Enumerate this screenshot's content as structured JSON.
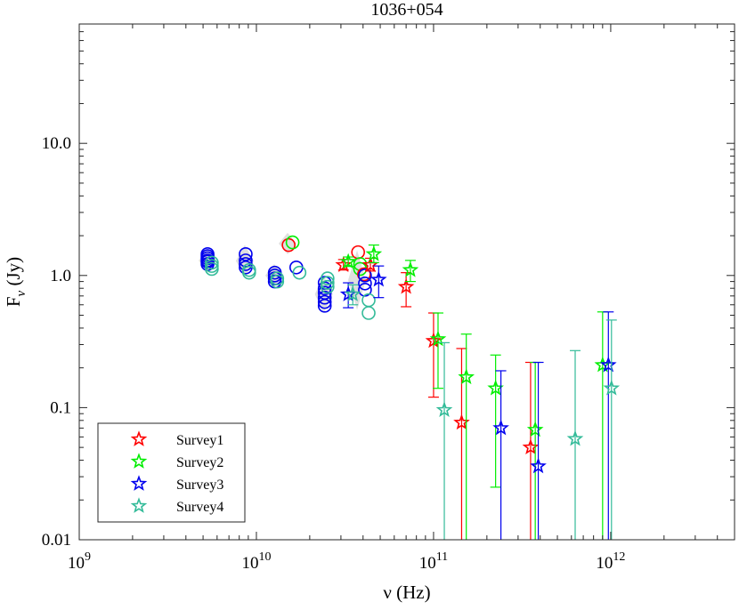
{
  "chart_data": {
    "type": "scatter",
    "title": "1036+054",
    "xlabel": "ν (Hz)",
    "ylabel": "F_ν (Jy)",
    "ylabel_main": "F",
    "ylabel_sub": "ν",
    "ylabel_unit": " (Jy)",
    "xscale": "log",
    "yscale": "log",
    "xlim": [
      1000000000,
      5000000000000
    ],
    "ylim": [
      0.01,
      80
    ],
    "x_ticks": [
      {
        "value": 1000000000,
        "mantissa": "10",
        "exp": "9"
      },
      {
        "value": 10000000000,
        "mantissa": "10",
        "exp": "10"
      },
      {
        "value": 100000000000,
        "mantissa": "10",
        "exp": "11"
      },
      {
        "value": 1000000000000,
        "mantissa": "10",
        "exp": "12"
      }
    ],
    "y_ticks": [
      {
        "value": 0.01,
        "label": "0.01"
      },
      {
        "value": 0.1,
        "label": "0.1"
      },
      {
        "value": 1,
        "label": "1.0"
      },
      {
        "value": 10,
        "label": "10.0"
      }
    ],
    "legend_position": "bottom-left",
    "colors": {
      "Survey1": "#ff0000",
      "Survey2": "#00ee00",
      "Survey3": "#0000ee",
      "Survey4": "#33bb99",
      "ground": "#d9d9d9"
    },
    "legend": [
      {
        "name": "Survey1",
        "color": "#ff0000"
      },
      {
        "name": "Survey2",
        "color": "#00ee00"
      },
      {
        "name": "Survey3",
        "color": "#0000ee"
      },
      {
        "name": "Survey4",
        "color": "#33bb99"
      }
    ],
    "ground_bands": [
      {
        "x": 5300000000,
        "ylo": 1.05,
        "yhi": 1.6
      },
      {
        "x": 8600000000,
        "ylo": 0.98,
        "yhi": 1.7
      },
      {
        "x": 12600000000,
        "ylo": 0.82,
        "yhi": 1.22
      },
      {
        "x": 15000000000,
        "ylo": 1.45,
        "yhi": 2.1
      },
      {
        "x": 24000000000,
        "ylo": 0.52,
        "yhi": 1.0
      },
      {
        "x": 37000000000,
        "ylo": 0.55,
        "yhi": 1.55
      }
    ],
    "ground_circles": [
      {
        "survey": "Survey3",
        "x": 5300000000,
        "y": [
          1.45,
          1.4,
          1.35,
          1.3,
          1.27,
          1.22
        ]
      },
      {
        "survey": "Survey4",
        "x": 5600000000,
        "y": [
          1.25,
          1.18,
          1.12
        ]
      },
      {
        "survey": "Survey3",
        "x": 8700000000,
        "y": [
          1.45,
          1.3,
          1.22,
          1.15
        ]
      },
      {
        "survey": "Survey4",
        "x": 9100000000,
        "y": [
          1.1,
          1.05
        ]
      },
      {
        "survey": "Survey3",
        "x": 12700000000,
        "y": [
          1.05,
          1.0,
          0.95,
          0.9
        ]
      },
      {
        "survey": "Survey4",
        "x": 13100000000,
        "y": [
          0.95,
          0.9
        ]
      },
      {
        "survey": "Survey1",
        "x": 15200000000,
        "y": [
          1.7
        ]
      },
      {
        "survey": "Survey2",
        "x": 16000000000,
        "y": [
          1.78
        ]
      },
      {
        "survey": "Survey3",
        "x": 16800000000,
        "y": [
          1.15
        ]
      },
      {
        "survey": "Survey4",
        "x": 17500000000,
        "y": [
          1.05
        ]
      },
      {
        "survey": "Survey3",
        "x": 24300000000,
        "y": [
          0.88,
          0.8,
          0.74,
          0.68,
          0.63,
          0.59
        ]
      },
      {
        "survey": "Survey4",
        "x": 25200000000,
        "y": [
          0.95,
          0.88,
          0.82
        ]
      },
      {
        "survey": "Survey1",
        "x": 37500000000,
        "y": [
          1.5
        ]
      },
      {
        "survey": "Survey2",
        "x": 38500000000,
        "y": [
          1.22,
          1.12
        ]
      },
      {
        "survey": "Survey1",
        "x": 40500000000,
        "y": [
          1.02
        ]
      },
      {
        "survey": "Survey3",
        "x": 41000000000,
        "y": [
          1.0,
          0.87,
          0.78
        ]
      },
      {
        "survey": "Survey4",
        "x": 43000000000,
        "y": [
          0.65,
          0.52
        ]
      }
    ],
    "series": [
      {
        "name": "Survey1",
        "color": "#ff0000",
        "points": [
          {
            "x": 31000000000,
            "y": 1.2,
            "lo": 1.1,
            "hi": 1.32
          },
          {
            "x": 44000000000,
            "y": 1.2,
            "lo": 1.08,
            "hi": 1.35
          },
          {
            "x": 70000000000,
            "y": 0.82,
            "lo": 0.58,
            "hi": 1.05
          },
          {
            "x": 100000000000,
            "y": 0.32,
            "lo": 0.12,
            "hi": 0.52
          },
          {
            "x": 144000000000,
            "y": 0.077,
            "lo": 0.001,
            "hi": 0.28
          },
          {
            "x": 353000000000,
            "y": 0.05,
            "lo": 0.001,
            "hi": 0.22
          }
        ]
      },
      {
        "name": "Survey2",
        "color": "#00ee00",
        "points": [
          {
            "x": 33000000000,
            "y": 1.27,
            "lo": 1.17,
            "hi": 1.38
          },
          {
            "x": 46000000000,
            "y": 1.45,
            "lo": 1.25,
            "hi": 1.7
          },
          {
            "x": 74000000000,
            "y": 1.1,
            "lo": 0.9,
            "hi": 1.3
          },
          {
            "x": 106000000000,
            "y": 0.33,
            "lo": 0.14,
            "hi": 0.52
          },
          {
            "x": 153000000000,
            "y": 0.17,
            "lo": 0.001,
            "hi": 0.36
          },
          {
            "x": 224000000000,
            "y": 0.14,
            "lo": 0.025,
            "hi": 0.25
          },
          {
            "x": 375000000000,
            "y": 0.068,
            "lo": 0.001,
            "hi": 0.22
          },
          {
            "x": 900000000000,
            "y": 0.21,
            "lo": 0.001,
            "hi": 0.53
          }
        ]
      },
      {
        "name": "Survey3",
        "color": "#0000ee",
        "points": [
          {
            "x": 33000000000,
            "y": 0.72,
            "lo": 0.57,
            "hi": 0.88
          },
          {
            "x": 49000000000,
            "y": 0.93,
            "lo": 0.68,
            "hi": 1.18
          },
          {
            "x": 240000000000,
            "y": 0.07,
            "lo": 0.001,
            "hi": 0.19
          },
          {
            "x": 390000000000,
            "y": 0.036,
            "lo": 0.001,
            "hi": 0.22
          },
          {
            "x": 970000000000,
            "y": 0.21,
            "lo": 0.001,
            "hi": 0.53
          }
        ]
      },
      {
        "name": "Survey4",
        "color": "#33bb99",
        "points": [
          {
            "x": 35000000000,
            "y": 0.72,
            "lo": 0.6,
            "hi": 0.85
          },
          {
            "x": 115000000000,
            "y": 0.096,
            "lo": 0.001,
            "hi": 0.31
          },
          {
            "x": 630000000000,
            "y": 0.058,
            "lo": 0.001,
            "hi": 0.27
          },
          {
            "x": 1010000000000,
            "y": 0.14,
            "lo": 0.001,
            "hi": 0.46
          }
        ]
      }
    ]
  }
}
